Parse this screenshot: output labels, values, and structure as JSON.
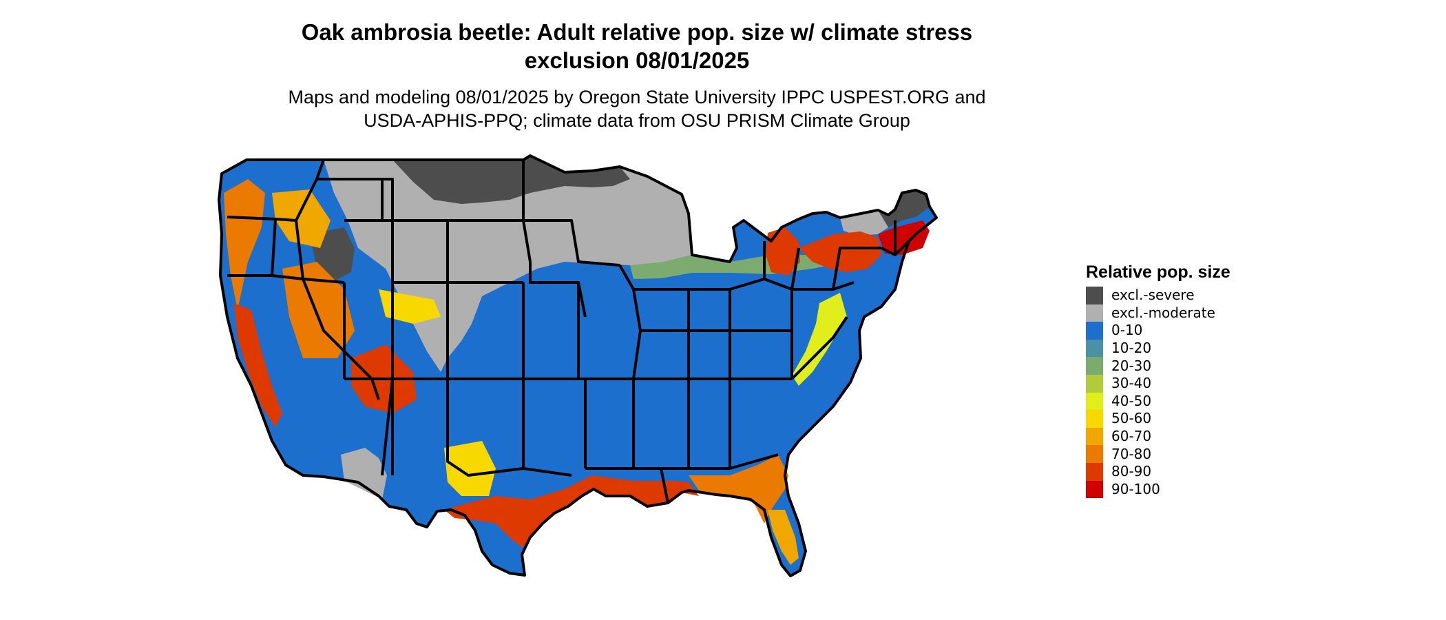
{
  "title_line1": "Oak ambrosia beetle: Adult relative pop. size w/ climate stress",
  "title_line2": "exclusion 08/01/2025",
  "subtitle_line1": "Maps and modeling 08/01/2025 by Oregon State University IPPC USPEST.ORG and",
  "subtitle_line2": "USDA-APHIS-PPQ; climate data from OSU PRISM Climate Group",
  "legend": {
    "title": "Relative pop. size",
    "items": [
      {
        "label": "excl.-severe",
        "color": "#4d4d4d"
      },
      {
        "label": "excl.-moderate",
        "color": "#b0b0b0"
      },
      {
        "label": "0-10",
        "color": "#1c6fcc"
      },
      {
        "label": "10-20",
        "color": "#4a91a8"
      },
      {
        "label": "20-30",
        "color": "#7bab6e"
      },
      {
        "label": "30-40",
        "color": "#b0cc3c"
      },
      {
        "label": "40-50",
        "color": "#e2ee1c"
      },
      {
        "label": "50-60",
        "color": "#f7d900"
      },
      {
        "label": "60-70",
        "color": "#f0a800"
      },
      {
        "label": "70-80",
        "color": "#ea7a00"
      },
      {
        "label": "80-90",
        "color": "#de3a00"
      },
      {
        "label": "90-100",
        "color": "#d10000"
      }
    ]
  }
}
